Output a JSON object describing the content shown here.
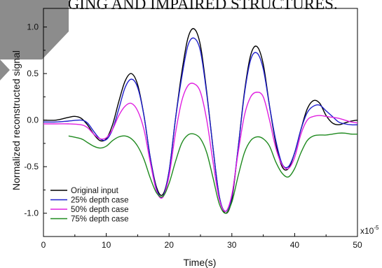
{
  "background_text": "AGING AND IMPAIRED STRUCTURES.",
  "chart_data": {
    "type": "line",
    "title": "",
    "xlabel": "Time(s)",
    "ylabel": "Normalized reconstructed signal",
    "x_multiplier": "x10",
    "x_multiplier_exp": "-5",
    "xlim": [
      0,
      50
    ],
    "ylim": [
      -1.25,
      1.2
    ],
    "x_ticks": [
      0,
      10,
      20,
      30,
      40,
      50
    ],
    "x_tick_labels": [
      "0",
      "10",
      "20",
      "30",
      "40",
      "50"
    ],
    "y_ticks": [
      -1.0,
      -0.5,
      0.0,
      0.5,
      1.0
    ],
    "y_tick_labels": [
      "-1.0",
      "-0.5",
      "0.0",
      "0.5",
      "1.0"
    ],
    "grid": false,
    "legend_position": "bottom-left",
    "series": [
      {
        "name": "Original input",
        "color": "#000000",
        "x": [
          0,
          2,
          4,
          5,
          6,
          7,
          8,
          9,
          10,
          11,
          12,
          13,
          14,
          15,
          16,
          17,
          18,
          19,
          20,
          21,
          22,
          23,
          24,
          25,
          26,
          27,
          28,
          29,
          30,
          31,
          32,
          33,
          34,
          35,
          36,
          37,
          38,
          39,
          40,
          41,
          42,
          43,
          44,
          45,
          46,
          47,
          48,
          49,
          50
        ],
        "y": [
          0.0,
          0.0,
          0.03,
          0.04,
          0.02,
          -0.05,
          -0.15,
          -0.22,
          -0.2,
          -0.05,
          0.2,
          0.42,
          0.5,
          0.38,
          0.05,
          -0.4,
          -0.72,
          -0.8,
          -0.55,
          0.0,
          0.5,
          0.88,
          0.98,
          0.8,
          0.3,
          -0.3,
          -0.82,
          -1.0,
          -0.85,
          -0.3,
          0.3,
          0.7,
          0.79,
          0.6,
          0.15,
          -0.25,
          -0.5,
          -0.52,
          -0.35,
          -0.1,
          0.12,
          0.21,
          0.18,
          0.05,
          -0.03,
          -0.05,
          -0.03,
          -0.01,
          0.0
        ]
      },
      {
        "name": "25% depth case",
        "color": "#1f1fcc",
        "x": [
          0,
          2,
          4,
          6,
          7,
          8,
          9,
          10,
          11,
          12,
          13,
          14,
          15,
          16,
          17,
          18,
          19,
          20,
          21,
          22,
          23,
          24,
          25,
          26,
          27,
          28,
          29,
          30,
          31,
          32,
          33,
          34,
          35,
          36,
          37,
          38,
          39,
          40,
          41,
          42,
          43,
          44,
          45,
          46,
          47,
          48,
          49,
          50
        ],
        "y": [
          -0.02,
          -0.02,
          -0.01,
          0.0,
          -0.03,
          -0.12,
          -0.2,
          -0.21,
          -0.1,
          0.12,
          0.35,
          0.44,
          0.35,
          0.05,
          -0.4,
          -0.74,
          -0.82,
          -0.55,
          0.0,
          0.45,
          0.8,
          0.88,
          0.74,
          0.28,
          -0.3,
          -0.82,
          -0.98,
          -0.82,
          -0.3,
          0.28,
          0.65,
          0.72,
          0.55,
          0.15,
          -0.22,
          -0.47,
          -0.5,
          -0.35,
          -0.1,
          0.08,
          0.15,
          0.16,
          0.1,
          0.04,
          -0.02,
          -0.04,
          -0.05,
          -0.05
        ]
      },
      {
        "name": "50% depth case",
        "color": "#e020e0",
        "x": [
          0,
          2,
          4,
          6,
          7,
          8,
          9,
          10,
          11,
          12,
          13,
          14,
          15,
          16,
          17,
          18,
          19,
          20,
          21,
          22,
          23,
          24,
          25,
          26,
          27,
          28,
          29,
          30,
          31,
          32,
          33,
          34,
          35,
          36,
          37,
          38,
          39,
          40,
          41,
          42,
          43,
          44,
          45,
          46,
          47,
          48,
          49,
          50
        ],
        "y": [
          -0.04,
          -0.04,
          -0.04,
          -0.05,
          -0.08,
          -0.15,
          -0.2,
          -0.19,
          -0.1,
          0.05,
          0.15,
          0.18,
          0.1,
          -0.1,
          -0.45,
          -0.76,
          -0.83,
          -0.6,
          -0.15,
          0.2,
          0.37,
          0.39,
          0.3,
          0.0,
          -0.45,
          -0.85,
          -0.98,
          -0.8,
          -0.35,
          0.05,
          0.25,
          0.3,
          0.25,
          0.0,
          -0.3,
          -0.48,
          -0.52,
          -0.4,
          -0.15,
          0.0,
          0.04,
          0.05,
          0.04,
          0.03,
          0.02,
          0.0,
          -0.02,
          -0.03
        ]
      },
      {
        "name": "75% depth case",
        "color": "#1f8a1f",
        "x": [
          4,
          6,
          7,
          8,
          9,
          10,
          11,
          12,
          13,
          14,
          15,
          16,
          17,
          18,
          19,
          20,
          21,
          22,
          23,
          24,
          25,
          26,
          27,
          28,
          29,
          30,
          31,
          32,
          33,
          34,
          35,
          36,
          37,
          38,
          39,
          40,
          41,
          42,
          43,
          44,
          45,
          46,
          47,
          48,
          49,
          50
        ],
        "y": [
          -0.17,
          -0.2,
          -0.24,
          -0.28,
          -0.3,
          -0.28,
          -0.22,
          -0.18,
          -0.17,
          -0.2,
          -0.28,
          -0.42,
          -0.62,
          -0.78,
          -0.82,
          -0.68,
          -0.45,
          -0.25,
          -0.16,
          -0.15,
          -0.2,
          -0.35,
          -0.62,
          -0.9,
          -1.0,
          -0.88,
          -0.6,
          -0.35,
          -0.22,
          -0.18,
          -0.2,
          -0.28,
          -0.45,
          -0.57,
          -0.61,
          -0.52,
          -0.35,
          -0.22,
          -0.17,
          -0.16,
          -0.16,
          -0.15,
          -0.14,
          -0.14,
          -0.15,
          -0.15
        ]
      }
    ]
  }
}
